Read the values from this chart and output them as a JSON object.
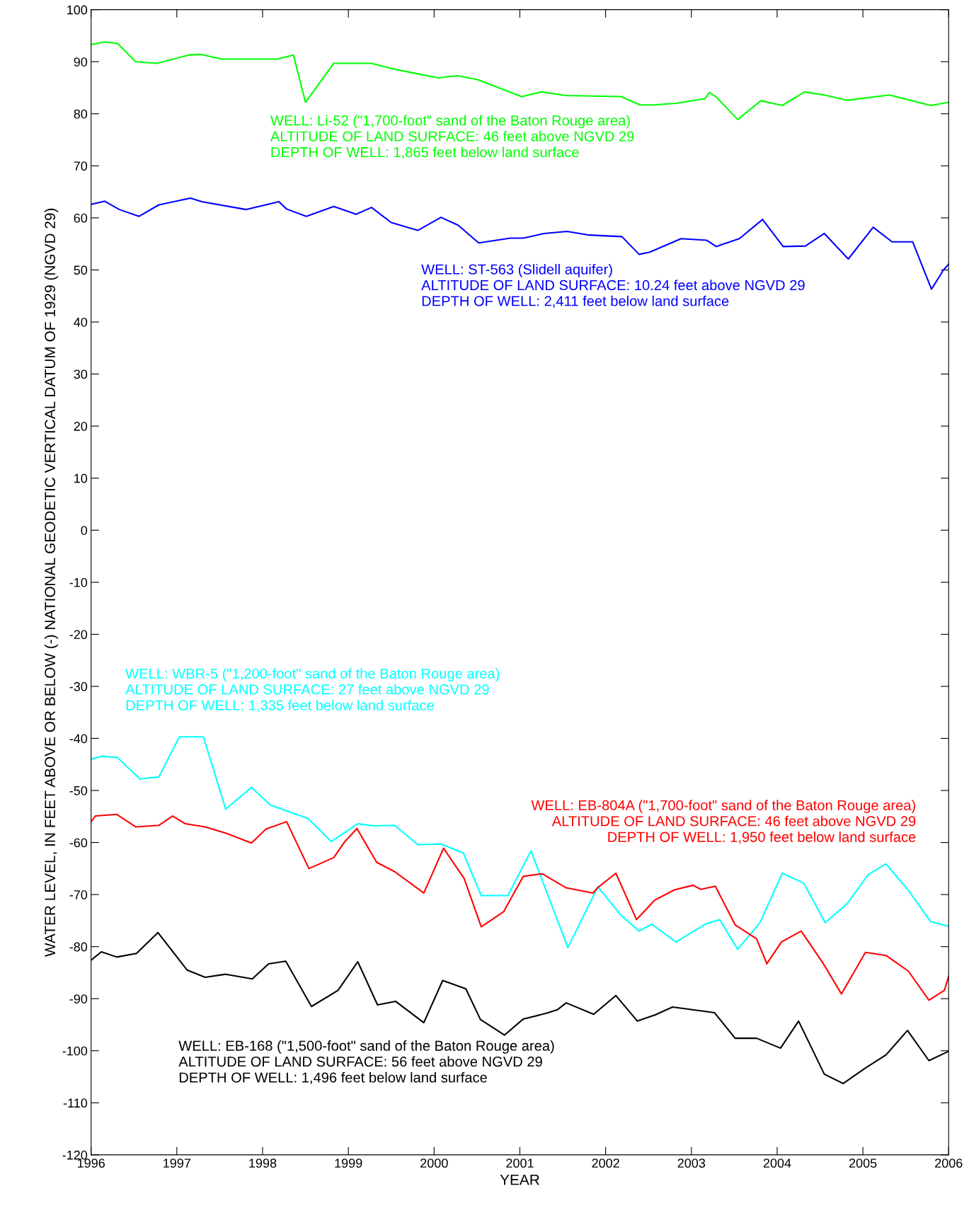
{
  "chart_data": {
    "type": "line",
    "xlabel": "YEAR",
    "ylabel": "WATER LEVEL, IN FEET ABOVE OR BELOW (-) NATIONAL GEODETIC VERTICAL DATUM OF 1929 (NGVD 29)",
    "xlim": [
      1996,
      2006
    ],
    "xticks": [
      1996,
      1997,
      1998,
      1999,
      2000,
      2001,
      2002,
      2003,
      2004,
      2005,
      2006
    ],
    "ylim": [
      -120,
      100
    ],
    "yticks": [
      -120,
      -110,
      -100,
      -90,
      -80,
      -70,
      -60,
      -50,
      -40,
      -30,
      -20,
      -10,
      0,
      10,
      20,
      30,
      40,
      50,
      60,
      70,
      80,
      90,
      100
    ],
    "grid": false,
    "legend": false,
    "marker": "none",
    "line_style": "solid",
    "series": [
      {
        "name": "WELL: Li-52 (\"1,700-foot\" sand of the Baton Rouge area)\nALTITUDE OF LAND SURFACE: 46 feet above NGVD 29\nDEPTH OF WELL: 1,865 feet below land surface",
        "color": "#00ff00",
        "x": [
          1996.0,
          1996.16,
          1996.31,
          1996.52,
          1996.77,
          1997.14,
          1997.28,
          1997.53,
          1998.17,
          1998.36,
          1998.5,
          1998.83,
          1999.27,
          1999.5,
          1999.83,
          2000.05,
          2000.27,
          2000.5,
          2001.02,
          2001.25,
          2001.54,
          2002.18,
          2002.4,
          2002.56,
          2002.82,
          2003.16,
          2003.21,
          2003.29,
          2003.54,
          2003.81,
          2004.06,
          2004.32,
          2004.55,
          2004.82,
          2005.31,
          2005.79,
          2006.0
        ],
        "values": [
          93.3,
          93.8,
          93.5,
          90.0,
          89.7,
          91.3,
          91.4,
          90.5,
          90.5,
          91.3,
          82.2,
          89.7,
          89.7,
          88.7,
          87.6,
          86.9,
          87.3,
          86.6,
          83.3,
          84.2,
          83.5,
          83.3,
          81.7,
          81.7,
          82.0,
          82.9,
          84.1,
          83.2,
          78.9,
          82.5,
          81.6,
          84.2,
          83.6,
          82.6,
          83.6,
          81.6,
          82.2
        ]
      },
      {
        "name": "WELL: ST-563 (Slidell aquifer)\nALTITUDE OF LAND SURFACE: 10.24 feet above NGVD 29\nDEPTH OF WELL: 2,411 feet below land surface",
        "color": "#0000ff",
        "x": [
          1996.0,
          1996.16,
          1996.33,
          1996.56,
          1996.79,
          1997.16,
          1997.29,
          1997.81,
          1998.19,
          1998.28,
          1998.51,
          1998.83,
          1999.09,
          1999.27,
          1999.5,
          1999.81,
          2000.08,
          2000.28,
          2000.52,
          2000.89,
          2001.04,
          2001.28,
          2001.55,
          2001.81,
          2002.19,
          2002.39,
          2002.51,
          2002.88,
          2003.18,
          2003.29,
          2003.56,
          2003.83,
          2004.07,
          2004.33,
          2004.55,
          2004.83,
          2005.12,
          2005.34,
          2005.58,
          2005.8,
          2005.94,
          2006.0
        ],
        "values": [
          62.6,
          63.2,
          61.6,
          60.3,
          62.5,
          63.8,
          63.1,
          61.6,
          63.1,
          61.7,
          60.3,
          62.2,
          60.7,
          62.0,
          59.1,
          57.6,
          60.1,
          58.6,
          55.2,
          56.1,
          56.1,
          57.0,
          57.4,
          56.7,
          56.4,
          53.0,
          53.4,
          56.0,
          55.7,
          54.5,
          56.0,
          59.7,
          54.5,
          54.6,
          57.0,
          52.1,
          58.2,
          55.4,
          55.4,
          46.3,
          50.0,
          51.1
        ]
      },
      {
        "name": "WELL: WBR-5 (\"1,200-foot\" sand of the Baton Rouge area)\nALTITUDE OF LAND SURFACE: 27 feet above NGVD 29\nDEPTH OF WELL: 1,335 feet below land surface",
        "color": "#00ffff",
        "x": [
          1996.0,
          1996.13,
          1996.31,
          1996.57,
          1996.79,
          1997.03,
          1997.31,
          1997.57,
          1997.87,
          1998.09,
          1998.53,
          1998.8,
          1999.11,
          1999.3,
          1999.54,
          1999.81,
          2000.08,
          2000.34,
          2000.55,
          2000.86,
          2001.13,
          2001.56,
          2001.91,
          2002.18,
          2002.39,
          2002.54,
          2002.82,
          2003.16,
          2003.33,
          2003.54,
          2003.8,
          2004.06,
          2004.31,
          2004.56,
          2004.82,
          2005.06,
          2005.27,
          2005.54,
          2005.79,
          2006.0
        ],
        "values": [
          -44.0,
          -43.4,
          -43.7,
          -47.8,
          -47.4,
          -39.7,
          -39.7,
          -53.6,
          -49.4,
          -52.8,
          -55.4,
          -59.8,
          -56.4,
          -56.8,
          -56.7,
          -60.4,
          -60.3,
          -62.0,
          -70.2,
          -70.2,
          -61.6,
          -80.2,
          -68.5,
          -74.0,
          -77.0,
          -75.7,
          -79.1,
          -75.7,
          -74.8,
          -80.5,
          -75.4,
          -65.9,
          -67.8,
          -75.4,
          -71.7,
          -66.2,
          -64.1,
          -69.4,
          -75.2,
          -76.1
        ]
      },
      {
        "name": "WELL: EB-804A (\"1,700-foot\" sand of the Baton Rouge area)\nALTITUDE OF LAND SURFACE: 46 feet above NGVD 29\nDEPTH OF WELL: 1,950 feet below land surface",
        "color": "#ff0000",
        "x": [
          1996.0,
          1996.05,
          1996.3,
          1996.52,
          1996.79,
          1996.95,
          1997.1,
          1997.33,
          1997.57,
          1997.87,
          1998.04,
          1998.28,
          1998.54,
          1998.83,
          1998.95,
          1999.1,
          1999.33,
          1999.54,
          1999.88,
          2000.11,
          2000.35,
          2000.55,
          2000.81,
          2001.04,
          2001.26,
          2001.54,
          2001.85,
          2001.92,
          2002.12,
          2002.36,
          2002.57,
          2002.8,
          2003.02,
          2003.11,
          2003.28,
          2003.51,
          2003.76,
          2003.88,
          2004.05,
          2004.28,
          2004.54,
          2004.75,
          2005.03,
          2005.27,
          2005.53,
          2005.77,
          2005.95,
          2006.0
        ],
        "values": [
          -56.0,
          -54.9,
          -54.6,
          -57.0,
          -56.7,
          -54.9,
          -56.4,
          -57.0,
          -58.2,
          -60.1,
          -57.4,
          -56.0,
          -65.0,
          -62.9,
          -60.0,
          -57.3,
          -63.8,
          -65.6,
          -69.7,
          -61.1,
          -66.9,
          -76.2,
          -73.3,
          -66.5,
          -66.0,
          -68.7,
          -69.7,
          -68.5,
          -65.9,
          -74.8,
          -71.1,
          -69.1,
          -68.2,
          -69.0,
          -68.4,
          -75.8,
          -78.5,
          -83.3,
          -79.1,
          -77.0,
          -83.3,
          -89.1,
          -81.1,
          -81.7,
          -84.7,
          -90.3,
          -88.4,
          -85.7
        ]
      },
      {
        "name": "WELL: EB-168 (\"1,500-foot\" sand of the Baton Rouge area)\nALTITUDE OF LAND SURFACE: 56 feet above NGVD 29\nDEPTH OF WELL: 1,496 feet below land surface",
        "color": "#000000",
        "x": [
          1996.0,
          1996.12,
          1996.3,
          1996.53,
          1996.78,
          1997.12,
          1997.33,
          1997.57,
          1997.88,
          1998.07,
          1998.27,
          1998.57,
          1998.88,
          1999.11,
          1999.34,
          1999.55,
          1999.88,
          2000.1,
          2000.37,
          2000.54,
          2000.82,
          2001.04,
          2001.31,
          2001.44,
          2001.54,
          2001.86,
          2002.12,
          2002.37,
          2002.58,
          2002.78,
          2003.27,
          2003.51,
          2003.76,
          2004.04,
          2004.25,
          2004.55,
          2004.77,
          2005.03,
          2005.27,
          2005.52,
          2005.77,
          2006.0
        ],
        "values": [
          -82.6,
          -81.0,
          -82.0,
          -81.3,
          -77.3,
          -84.5,
          -85.9,
          -85.3,
          -86.2,
          -83.3,
          -82.8,
          -91.5,
          -88.4,
          -82.9,
          -91.2,
          -90.5,
          -94.6,
          -86.5,
          -88.1,
          -94.0,
          -97.0,
          -93.9,
          -92.8,
          -92.1,
          -90.8,
          -93.0,
          -89.4,
          -94.3,
          -93.1,
          -91.6,
          -92.7,
          -97.6,
          -97.6,
          -99.5,
          -94.3,
          -104.5,
          -106.3,
          -103.3,
          -100.8,
          -96.1,
          -101.9,
          -100.1
        ]
      }
    ]
  }
}
